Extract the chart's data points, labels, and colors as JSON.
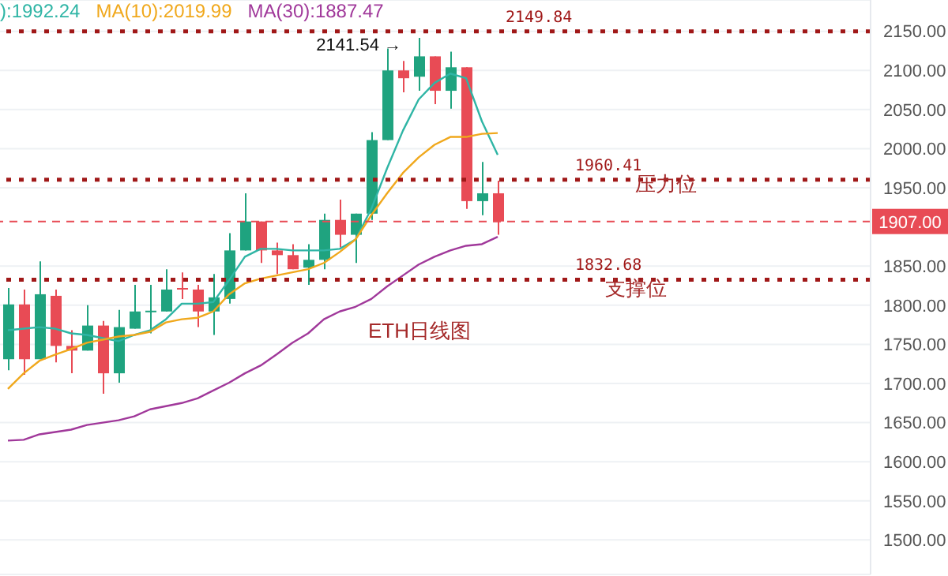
{
  "chart_data": {
    "type": "candlestick",
    "categories": [
      null,
      null,
      null,
      null,
      null,
      null,
      null,
      null,
      null,
      null,
      null,
      null,
      null,
      null,
      null,
      null,
      null,
      null,
      null,
      null,
      null,
      null,
      null,
      null,
      null,
      null,
      null,
      null,
      null,
      null,
      null,
      null
    ],
    "ohlc": [
      [
        1731,
        1822,
        1717,
        1801
      ],
      [
        1801,
        1820,
        1711,
        1731
      ],
      [
        1731,
        1856,
        1731,
        1814
      ],
      [
        1812,
        1820,
        1727,
        1748
      ],
      [
        1748,
        1768,
        1713,
        1742
      ],
      [
        1742,
        1800,
        1742,
        1774
      ],
      [
        1774,
        1780,
        1687,
        1713
      ],
      [
        1713,
        1794,
        1701,
        1772
      ],
      [
        1770,
        1826,
        1770,
        1792
      ],
      [
        1792,
        1826,
        1764,
        1793
      ],
      [
        1792,
        1846,
        1792,
        1820
      ],
      [
        1822,
        1842,
        1808,
        1821
      ],
      [
        1820,
        1826,
        1772,
        1792
      ],
      [
        1792,
        1840,
        1762,
        1810
      ],
      [
        1808,
        1892,
        1802,
        1870
      ],
      [
        1870,
        1943,
        1870,
        1907
      ],
      [
        1907,
        1907,
        1854,
        1870
      ],
      [
        1870,
        1880,
        1840,
        1864
      ],
      [
        1864,
        1878,
        1846,
        1846
      ],
      [
        1848,
        1878,
        1826,
        1858
      ],
      [
        1858,
        1917,
        1846,
        1909
      ],
      [
        1909,
        1935,
        1874,
        1890
      ],
      [
        1890,
        1917,
        1854,
        1917
      ],
      [
        1917,
        2021,
        1909,
        2011
      ],
      [
        2011,
        2128,
        2011,
        2100
      ],
      [
        2100,
        2112,
        2072,
        2090
      ],
      [
        2092,
        2141.54,
        2074,
        2118
      ],
      [
        2118,
        2118,
        2057,
        2074
      ],
      [
        2074,
        2124,
        2051,
        2104
      ],
      [
        2104,
        2104,
        1923,
        1933
      ],
      [
        1933,
        1983,
        1915,
        1943
      ],
      [
        1943,
        1959,
        1890,
        1907
      ]
    ],
    "colors": [
      "#1fa37f",
      "#e84b55",
      "#1fa37f",
      "#e84b55",
      "#e84b55",
      "#1fa37f",
      "#e84b55",
      "#1fa37f",
      "#1fa37f",
      "#1fa37f",
      "#1fa37f",
      "#e84b55",
      "#e84b55",
      "#1fa37f",
      "#1fa37f",
      "#1fa37f",
      "#e84b55",
      "#e84b55",
      "#e84b55",
      "#1fa37f",
      "#1fa37f",
      "#e84b55",
      "#1fa37f",
      "#1fa37f",
      "#1fa37f",
      "#e84b55",
      "#1fa37f",
      "#e84b55",
      "#1fa37f",
      "#e84b55",
      "#1fa37f",
      "#e84b55"
    ],
    "series": [
      {
        "type": "line",
        "name": "):1992.24",
        "color": "#2fb5a5",
        "values": [
          1768,
          1770,
          1772,
          1770,
          1764,
          1762,
          1758,
          1754,
          1762,
          1768,
          1782,
          1802,
          1802,
          1804,
          1832,
          1862,
          1872,
          1872,
          1870,
          1870,
          1870,
          1872,
          1884,
          1923,
          1975,
          2023,
          2063,
          2084,
          2096,
          2090,
          2035,
          1992.24
        ]
      },
      {
        "type": "line",
        "name": "MA(10):2019.99",
        "color": "#f0a81c",
        "values": [
          1693,
          1713,
          1729,
          1737,
          1744,
          1752,
          1756,
          1760,
          1762,
          1766,
          1778,
          1782,
          1784,
          1792,
          1814,
          1828,
          1834,
          1838,
          1842,
          1846,
          1854,
          1868,
          1884,
          1915,
          1943,
          1969,
          1989,
          2005,
          2015,
          2015,
          2019,
          2019.99
        ]
      },
      {
        "type": "line",
        "name": "MA(30):1887.47",
        "color": "#a0389a",
        "values": [
          1627,
          1628,
          1635,
          1638,
          1641,
          1647,
          1650,
          1653,
          1658,
          1667,
          1671,
          1675,
          1681,
          1691,
          1701,
          1713,
          1723,
          1737,
          1752,
          1764,
          1782,
          1792,
          1798,
          1808,
          1824,
          1838,
          1852,
          1862,
          1870,
          1876,
          1878,
          1887.47
        ]
      }
    ],
    "ylim": [
      1456,
      2190
    ],
    "yticks": [
      {
        "value": 1500,
        "label": "1500.00"
      },
      {
        "value": 1550,
        "label": "1550.00"
      },
      {
        "value": 1600,
        "label": "1600.00"
      },
      {
        "value": 1650,
        "label": "1650.00"
      },
      {
        "value": 1700,
        "label": "1700.00"
      },
      {
        "value": 1750,
        "label": "1750.00"
      },
      {
        "value": 1800,
        "label": "1800.00"
      },
      {
        "value": 1850,
        "label": "1850.00"
      },
      {
        "value": 1950,
        "label": "1950.00"
      },
      {
        "value": 2000,
        "label": "2000.00"
      },
      {
        "value": 2050,
        "label": "2050.00"
      },
      {
        "value": 2100,
        "label": "2100.00"
      },
      {
        "value": 2150,
        "label": "2150.00"
      }
    ],
    "tick_labels": "y",
    "grid": "y",
    "ref_lines": [
      {
        "axis": "y",
        "value": 2149.84,
        "label": "2149.84",
        "color": "#a01818",
        "line_style": "dotted"
      },
      {
        "axis": "y",
        "value": 1960.41,
        "label": "1960.41",
        "color": "#a01818",
        "line_style": "dotted"
      },
      {
        "axis": "y",
        "value": 1832.68,
        "label": "1832.68",
        "color": "#a01818",
        "line_style": "dotted"
      },
      {
        "axis": "y",
        "value": 1907,
        "label": "1907.00",
        "color": "#e84b55",
        "line_style": "dashed"
      }
    ],
    "annotations": [
      {
        "text": "2141.54 →",
        "y": 2141.54
      },
      "压力位",
      "支撑位",
      "ETH日线图"
    ]
  }
}
